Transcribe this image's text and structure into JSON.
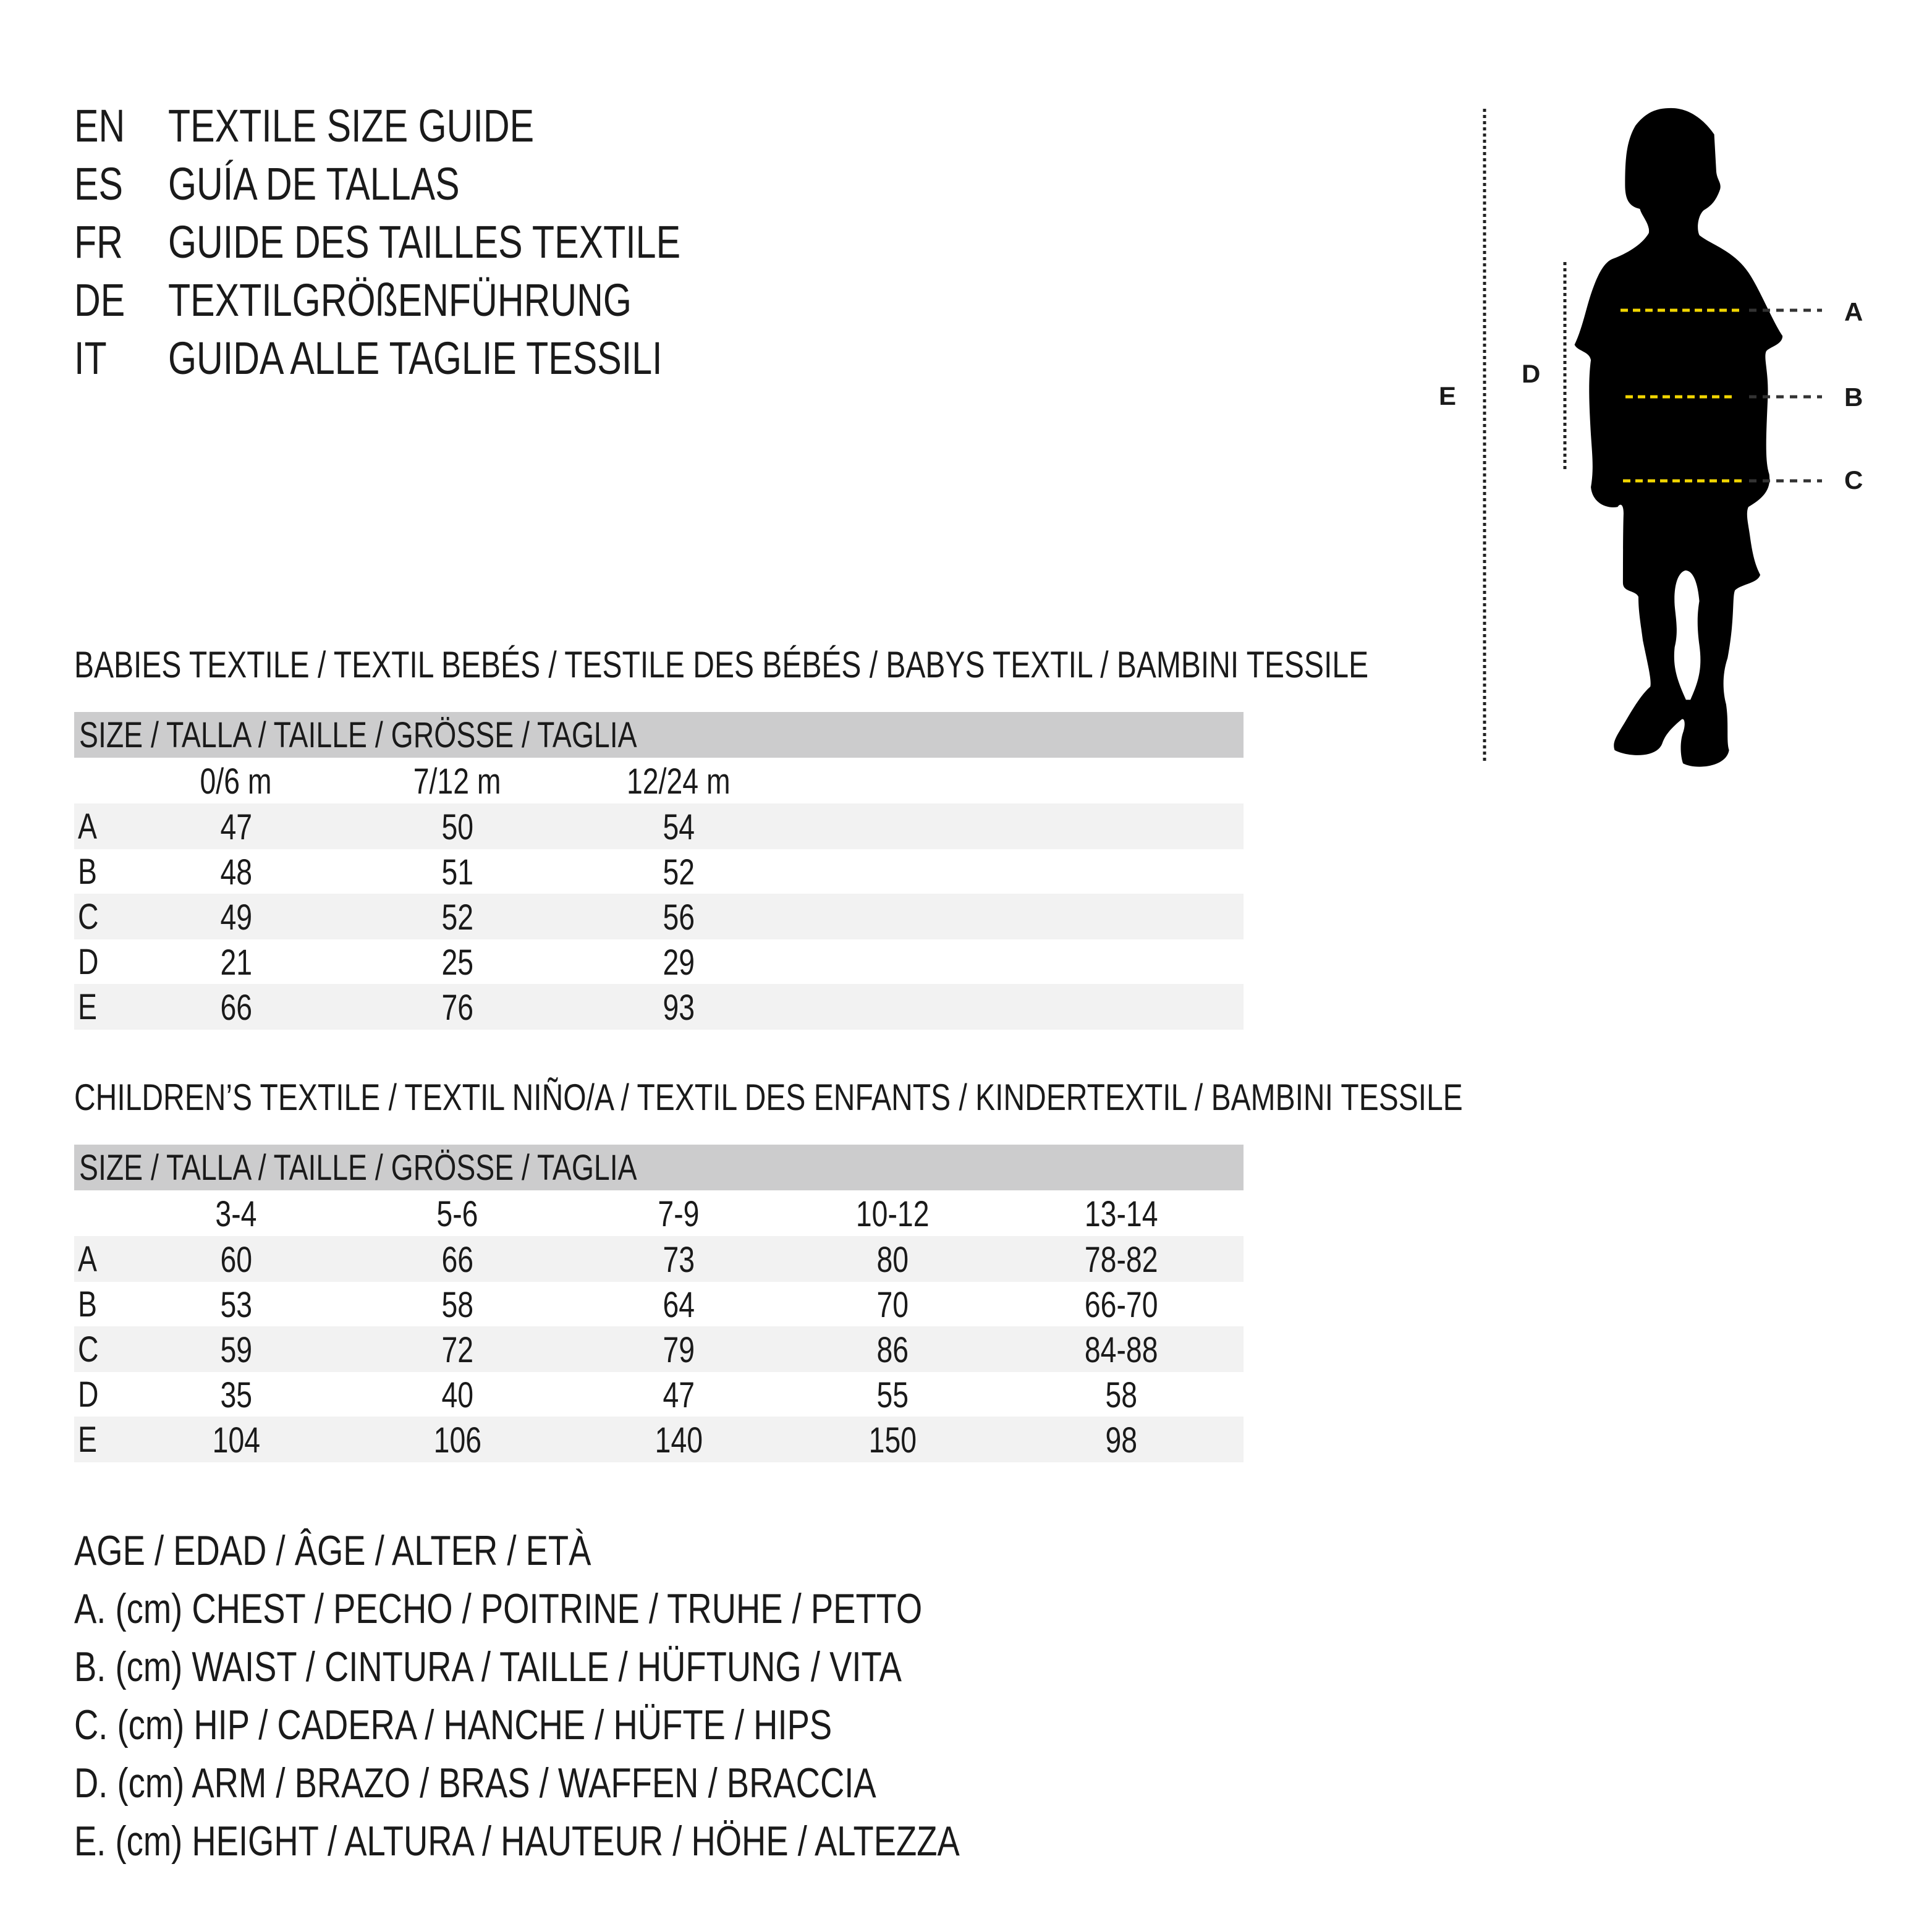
{
  "titles": [
    {
      "code": "EN",
      "text": "TEXTILE SIZE GUIDE"
    },
    {
      "code": "ES",
      "text": "GUÍA DE TALLAS"
    },
    {
      "code": "FR",
      "text": "GUIDE DES TAILLES TEXTILE"
    },
    {
      "code": "DE",
      "text": "TEXTILGRÖßENFÜHRUNG"
    },
    {
      "code": "IT",
      "text": "GUIDA ALLE TAGLIE TESSILI"
    }
  ],
  "babies": {
    "heading": "BABIES TEXTILE / TEXTIL BEBÉS / TESTILE DES BÉBÉS / BABYS TEXTIL / BAMBINI TESSILE",
    "size_header": "SIZE / TALLA / TAILLE / GRÖSSE / TAGLIA",
    "columns": [
      "0/6 m",
      "7/12 m",
      "12/24 m"
    ],
    "rows": [
      {
        "label": "A",
        "values": [
          "47",
          "50",
          "54"
        ]
      },
      {
        "label": "B",
        "values": [
          "48",
          "51",
          "52"
        ]
      },
      {
        "label": "C",
        "values": [
          "49",
          "52",
          "56"
        ]
      },
      {
        "label": "D",
        "values": [
          "21",
          "25",
          "29"
        ]
      },
      {
        "label": "E",
        "values": [
          "66",
          "76",
          "93"
        ]
      }
    ]
  },
  "children": {
    "heading": "CHILDREN’S TEXTILE / TEXTIL NIÑO/A / TEXTIL DES ENFANTS / KINDERTEXTIL / BAMBINI TESSILE",
    "size_header": "SIZE / TALLA / TAILLE / GRÖSSE / TAGLIA",
    "columns": [
      "3-4",
      "5-6",
      "7-9",
      "10-12",
      "13-14"
    ],
    "rows": [
      {
        "label": "A",
        "values": [
          "60",
          "66",
          "73",
          "80",
          "78-82"
        ]
      },
      {
        "label": "B",
        "values": [
          "53",
          "58",
          "64",
          "70",
          "66-70"
        ]
      },
      {
        "label": "C",
        "values": [
          "59",
          "72",
          "79",
          "86",
          "84-88"
        ]
      },
      {
        "label": "D",
        "values": [
          "35",
          "40",
          "47",
          "55",
          "58"
        ]
      },
      {
        "label": "E",
        "values": [
          "104",
          "106",
          "140",
          "150",
          "98"
        ]
      }
    ]
  },
  "legend": [
    "AGE / EDAD / ÂGE / ALTER / ETÀ",
    "A. (cm) CHEST / PECHO / POITRINE / TRUHE / PETTO",
    "B. (cm) WAIST / CINTURA / TAILLE / HÜFTUNG / VITA",
    "C. (cm) HIP / CADERA / HANCHE / HÜFTE / HIPS",
    "D. (cm) ARM / BRAZO / BRAS / WAFFEN / BRACCIA",
    "E. (cm) HEIGHT / ALTURA / HAUTEUR / HÖHE / ALTEZZA"
  ],
  "figure": {
    "labels": {
      "a": "A",
      "b": "B",
      "c": "C",
      "d": "D",
      "e": "E"
    },
    "colors": {
      "measure_line": "#f2d600",
      "guide_line": "#222222",
      "silhouette": "#000000"
    }
  }
}
